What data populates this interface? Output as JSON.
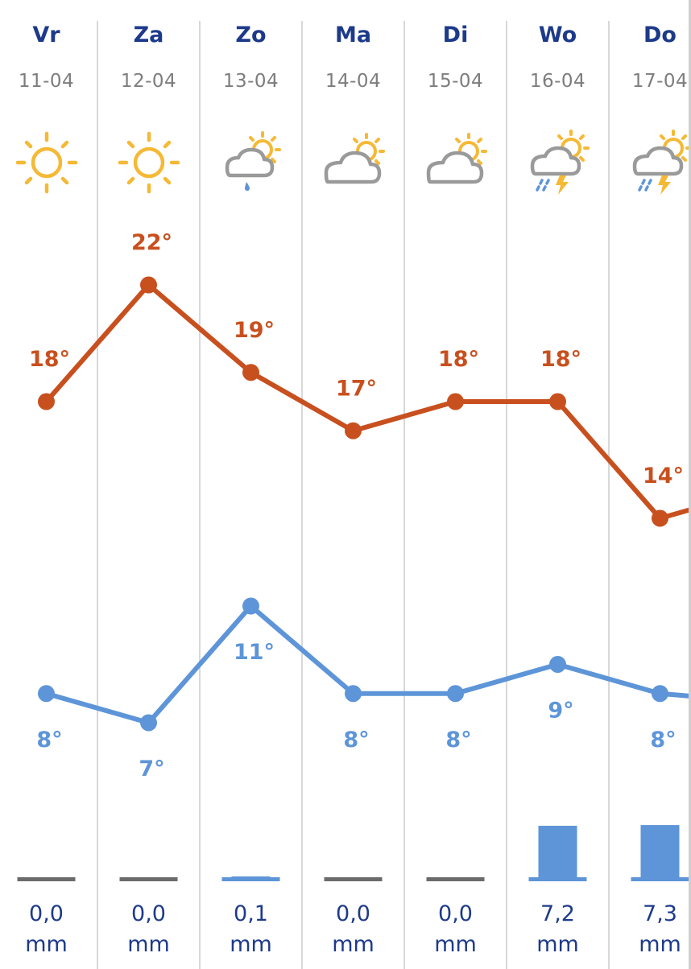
{
  "colors": {
    "max_temp": "#c8501e",
    "min_temp": "#5d95d8",
    "day_name": "#1d3a8a",
    "date": "#7d7d7d",
    "rain_bar": "#5d95d8",
    "no_rain_bar": "#6b6b6b",
    "sun": "#f5b935",
    "cloud": "#9a9a9a"
  },
  "days": [
    {
      "name": "Vr",
      "date": "11-04",
      "icon": "sun-icon",
      "max": 18,
      "max_label": "18°",
      "min": 8,
      "min_label": "8°",
      "rain_value": "0,0",
      "rain_unit": "mm",
      "rain_mm": 0.0
    },
    {
      "name": "Za",
      "date": "12-04",
      "icon": "sun-icon",
      "max": 22,
      "max_label": "22°",
      "min": 7,
      "min_label": "7°",
      "rain_value": "0,0",
      "rain_unit": "mm",
      "rain_mm": 0.0
    },
    {
      "name": "Zo",
      "date": "13-04",
      "icon": "sun-cloud-light-rain-icon",
      "max": 19,
      "max_label": "19°",
      "min": 11,
      "min_label": "11°",
      "rain_value": "0,1",
      "rain_unit": "mm",
      "rain_mm": 0.1
    },
    {
      "name": "Ma",
      "date": "14-04",
      "icon": "partly-cloudy-icon",
      "max": 17,
      "max_label": "17°",
      "min": 8,
      "min_label": "8°",
      "rain_value": "0,0",
      "rain_unit": "mm",
      "rain_mm": 0.0
    },
    {
      "name": "Di",
      "date": "15-04",
      "icon": "partly-cloudy-icon",
      "max": 18,
      "max_label": "18°",
      "min": 8,
      "min_label": "8°",
      "rain_value": "0,0",
      "rain_unit": "mm",
      "rain_mm": 0.0
    },
    {
      "name": "Wo",
      "date": "16-04",
      "icon": "thunderstorm-rain-icon",
      "max": 18,
      "max_label": "18°",
      "min": 9,
      "min_label": "9°",
      "rain_value": "7,2",
      "rain_unit": "mm",
      "rain_mm": 7.2
    },
    {
      "name": "Do",
      "date": "17-04",
      "icon": "thunderstorm-rain-icon",
      "max": 14,
      "max_label": "14°",
      "min": 8,
      "min_label": "8°",
      "rain_value": "7,3",
      "rain_unit": "mm",
      "rain_mm": 7.3
    }
  ],
  "next_day": {
    "max": 15,
    "min": 7.7
  }
}
